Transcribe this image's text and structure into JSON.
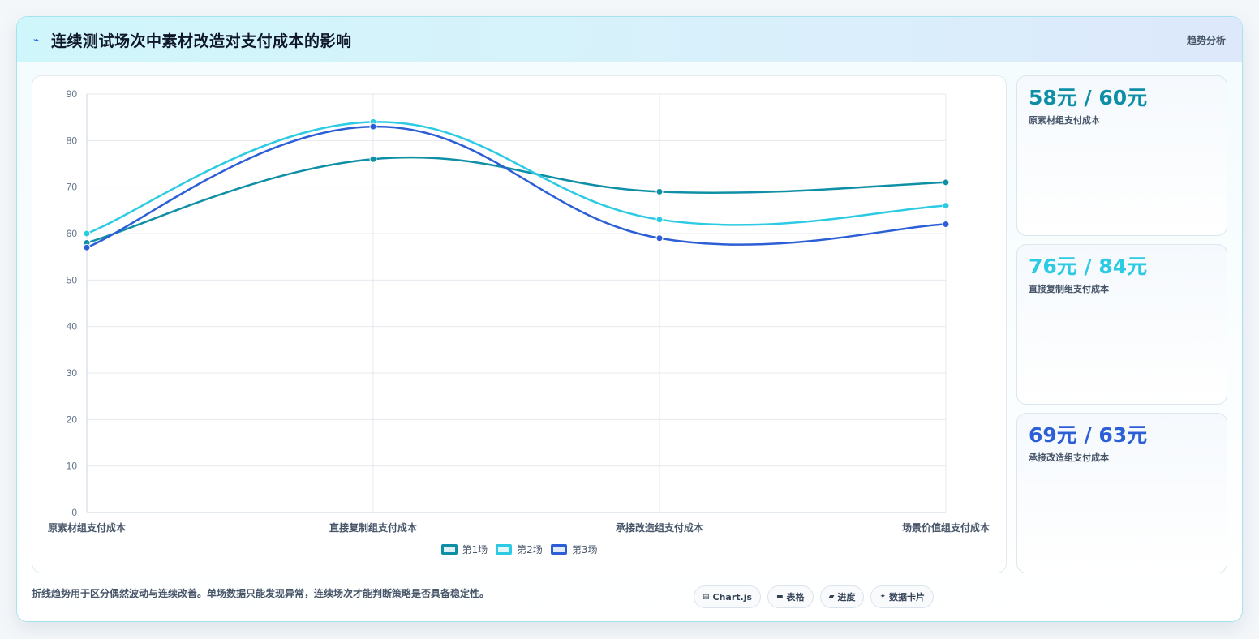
{
  "header": {
    "title_icon": "trend-icon",
    "title": "连续测试场次中素材改造对支付成本的影响",
    "tag": "趋势分析"
  },
  "stats": [
    {
      "value": "58元 / 60元",
      "label": "原素材组支付成本",
      "color": "#0e8fa6"
    },
    {
      "value": "76元 / 84元",
      "label": "直接复制组支付成本",
      "color": "#2ccbe3"
    },
    {
      "value": "69元 / 63元",
      "label": "承接改造组支付成本",
      "color": "#2c5fd6"
    }
  ],
  "footer": {
    "note": "折线趋势用于区分偶然波动与连续改善。单场数据只能发现异常，连续场次才能判断策略是否具备稳定性。",
    "chips": [
      {
        "icon": "chart-icon",
        "glyph": "▤",
        "label": "Chart.js"
      },
      {
        "icon": "table-icon",
        "glyph": "▬",
        "label": "表格"
      },
      {
        "icon": "progress-icon",
        "glyph": "▰",
        "label": "进度"
      },
      {
        "icon": "sparkle-icon",
        "glyph": "✦",
        "label": "数据卡片"
      }
    ]
  },
  "chart_data": {
    "type": "line",
    "categories": [
      "原素材组支付成本",
      "直接复制组支付成本",
      "承接改造组支付成本",
      "场景价值组支付成本"
    ],
    "series": [
      {
        "name": "第1场",
        "values": [
          58,
          76,
          69,
          71
        ],
        "color": "#0e8fa6"
      },
      {
        "name": "第2场",
        "values": [
          60,
          84,
          63,
          66
        ],
        "color": "#2ccbe3"
      },
      {
        "name": "第3场",
        "values": [
          57,
          83,
          59,
          62
        ],
        "color": "#2c5fd6"
      }
    ],
    "ylim": [
      0,
      90
    ],
    "yticks": [
      0,
      10,
      20,
      30,
      40,
      50,
      60,
      70,
      80,
      90
    ],
    "grid": true,
    "legend": "bottom",
    "smooth": true
  }
}
